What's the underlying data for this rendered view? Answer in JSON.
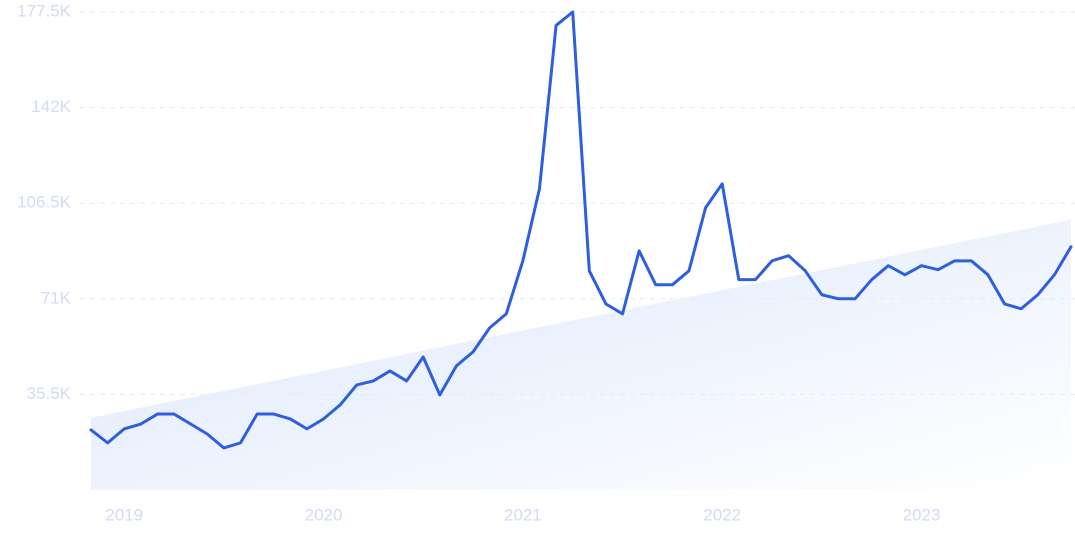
{
  "chart_data": {
    "type": "line",
    "categories": [
      null,
      null,
      "2019",
      null,
      null,
      null,
      null,
      null,
      null,
      null,
      null,
      null,
      null,
      null,
      "2020",
      null,
      null,
      null,
      null,
      null,
      null,
      null,
      null,
      null,
      null,
      null,
      "2021",
      null,
      null,
      null,
      null,
      null,
      null,
      null,
      null,
      null,
      null,
      null,
      "2022",
      null,
      null,
      null,
      null,
      null,
      null,
      null,
      null,
      null,
      null,
      null,
      "2023",
      null,
      null,
      null,
      null,
      null,
      null,
      null,
      null,
      null
    ],
    "series": [
      {
        "color": "#2f5fdc",
        "values": [
          22300,
          17500,
          22700,
          24500,
          28200,
          28200,
          24500,
          20800,
          15600,
          17500,
          28200,
          28200,
          26400,
          22700,
          26400,
          31600,
          39000,
          40500,
          44200,
          40500,
          49400,
          35300,
          46100,
          51300,
          60200,
          65400,
          85100,
          111900,
          172500,
          177500,
          81400,
          69100,
          65400,
          88800,
          76200,
          76200,
          81400,
          104800,
          113700,
          78100,
          78100,
          85100,
          87000,
          81400,
          72500,
          71000,
          71000,
          78100,
          83300,
          79900,
          83300,
          81800,
          85100,
          85100,
          79900,
          69100,
          67300,
          72500,
          79900,
          90300
        ]
      }
    ],
    "trend": [
      26800,
      100400
    ],
    "ylim": [
      0,
      177500
    ],
    "yticks": [
      {
        "value": 35500,
        "label": "35.5K"
      },
      {
        "value": 71000,
        "label": "71K"
      },
      {
        "value": 106500,
        "label": "106.5K"
      },
      {
        "value": 142000,
        "label": "142K"
      },
      {
        "value": 177500,
        "label": "177.5K"
      }
    ],
    "grid": true
  }
}
